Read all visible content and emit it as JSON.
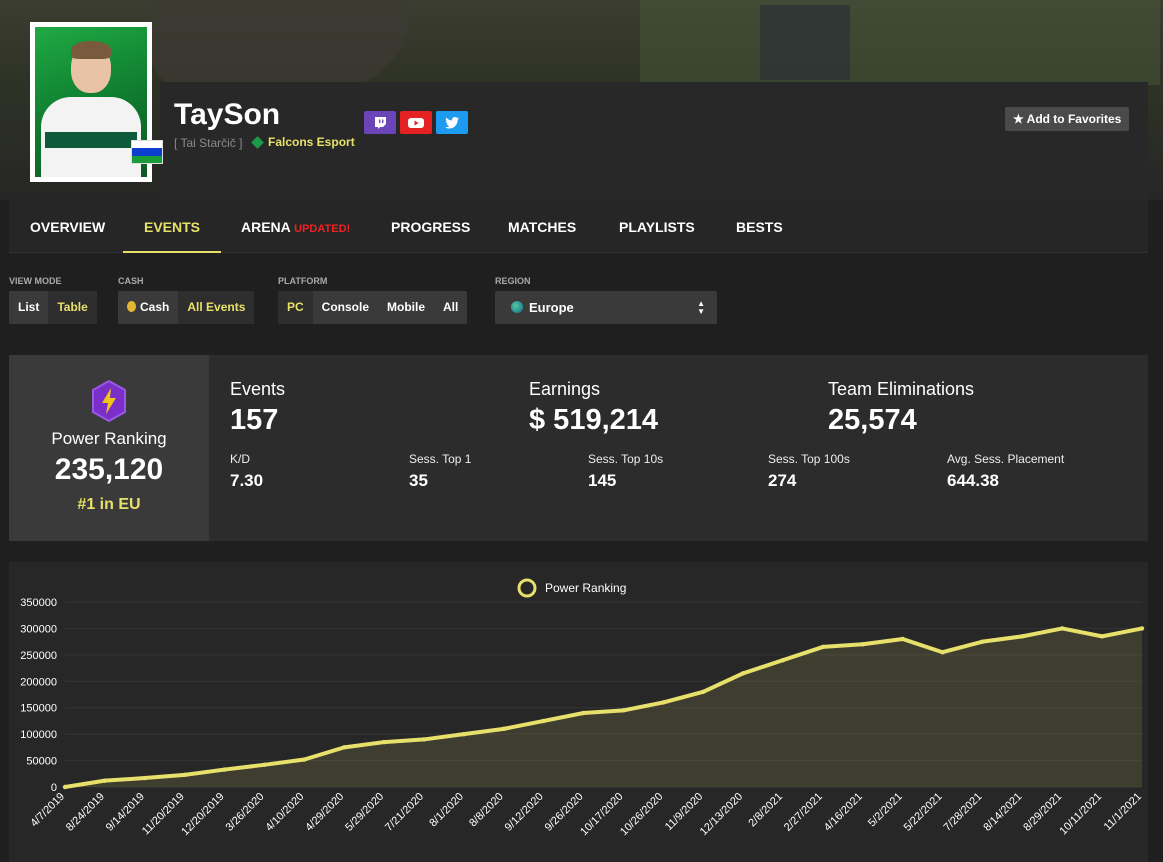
{
  "profile": {
    "name": "TaySon",
    "real_name": "[ Tai Starčič ]",
    "team": "Falcons Esport",
    "flag_colors": [
      "#ffffff",
      "#0d3fcf",
      "#1a9c3a"
    ],
    "add_favorites": "★ Add to Favorites",
    "socials": [
      {
        "name": "twitch",
        "color": "#6b45b8"
      },
      {
        "name": "youtube",
        "color": "#e52222"
      },
      {
        "name": "twitter",
        "color": "#1d9bf0"
      }
    ]
  },
  "tabs": [
    {
      "label": "OVERVIEW"
    },
    {
      "label": "EVENTS",
      "active": true
    },
    {
      "label": "ARENA",
      "badge": "UPDATED!"
    },
    {
      "label": "PROGRESS"
    },
    {
      "label": "MATCHES"
    },
    {
      "label": "PLAYLISTS"
    },
    {
      "label": "BESTS"
    }
  ],
  "filters": {
    "view_mode": {
      "label": "VIEW MODE",
      "options": [
        "List",
        "Table"
      ],
      "selected": "Table"
    },
    "cash": {
      "label": "CASH",
      "options": [
        "Cash",
        "All Events"
      ],
      "selected": "All Events"
    },
    "platform": {
      "label": "PLATFORM",
      "options": [
        "PC",
        "Console",
        "Mobile",
        "All"
      ],
      "selected": "PC"
    },
    "region": {
      "label": "REGION",
      "value": "Europe"
    }
  },
  "stats": {
    "power_ranking_label": "Power Ranking",
    "power_ranking_value": "235,120",
    "power_ranking_rank": "#1 in EU",
    "events_label": "Events",
    "events_value": "157",
    "earnings_label": "Earnings",
    "earnings_value": "$ 519,214",
    "team_elims_label": "Team Eliminations",
    "team_elims_value": "25,574",
    "kd_label": "K/D",
    "kd_value": "7.30",
    "top1_label": "Sess. Top 1",
    "top1_value": "35",
    "top10_label": "Sess. Top 10s",
    "top10_value": "145",
    "top100_label": "Sess. Top 100s",
    "top100_value": "274",
    "avg_label": "Avg. Sess. Placement",
    "avg_value": "644.38"
  },
  "chart_data": {
    "type": "area",
    "legend": "Power Ranking",
    "color": "#e7e06a",
    "ylim": [
      0,
      350000
    ],
    "yticks": [
      0,
      50000,
      100000,
      150000,
      200000,
      250000,
      300000,
      350000
    ],
    "x": [
      "4/7/2019",
      "8/24/2019",
      "9/14/2019",
      "11/20/2019",
      "12/20/2019",
      "3/26/2020",
      "4/10/2020",
      "4/29/2020",
      "5/29/2020",
      "7/21/2020",
      "8/1/2020",
      "8/8/2020",
      "9/12/2020",
      "9/26/2020",
      "10/17/2020",
      "10/26/2020",
      "11/9/2020",
      "12/13/2020",
      "2/8/2021",
      "2/27/2021",
      "4/16/2021",
      "5/2/2021",
      "5/22/2021",
      "7/28/2021",
      "8/14/2021",
      "8/29/2021",
      "10/11/2021",
      "11/1/2021"
    ],
    "values": [
      0,
      12000,
      17000,
      23000,
      33000,
      42000,
      52000,
      75000,
      85000,
      90000,
      100000,
      110000,
      125000,
      140000,
      145000,
      160000,
      180000,
      215000,
      240000,
      265000,
      270000,
      280000,
      255000,
      275000,
      285000,
      300000,
      285000,
      300000
    ]
  }
}
